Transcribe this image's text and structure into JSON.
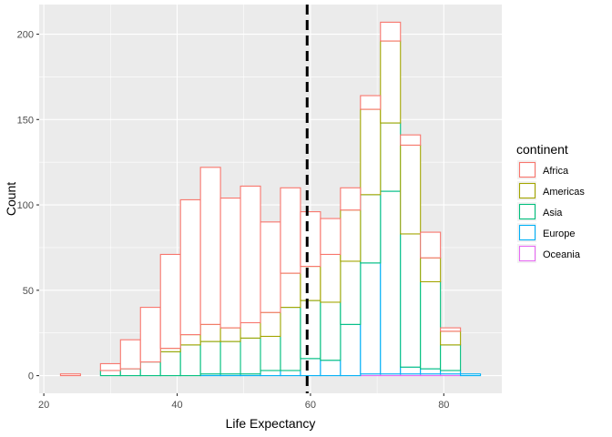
{
  "chart_data": {
    "type": "bar",
    "stacking": "stacked",
    "bins": [
      [
        22.5,
        25.5
      ],
      [
        25.5,
        28.5
      ],
      [
        28.5,
        31.5
      ],
      [
        31.5,
        34.5
      ],
      [
        34.5,
        37.5
      ],
      [
        37.5,
        40.5
      ],
      [
        40.5,
        43.5
      ],
      [
        43.5,
        46.5
      ],
      [
        46.5,
        49.5
      ],
      [
        49.5,
        52.5
      ],
      [
        52.5,
        55.5
      ],
      [
        55.5,
        58.5
      ],
      [
        58.5,
        61.5
      ],
      [
        61.5,
        64.5
      ],
      [
        64.5,
        67.5
      ],
      [
        67.5,
        70.5
      ],
      [
        70.5,
        73.5
      ],
      [
        73.5,
        76.5
      ],
      [
        76.5,
        79.5
      ],
      [
        79.5,
        82.5
      ],
      [
        82.5,
        85.5
      ]
    ],
    "series": [
      {
        "name": "Oceania",
        "color": "#E76BF3",
        "values": [
          0,
          0,
          0,
          0,
          0,
          0,
          0,
          0,
          0,
          0,
          0,
          0,
          0,
          0,
          0,
          1,
          1,
          1,
          1,
          1,
          0
        ]
      },
      {
        "name": "Europe",
        "color": "#00B0F6",
        "values": [
          0,
          0,
          0,
          0,
          0,
          0,
          0,
          1,
          1,
          1,
          3,
          3,
          10,
          9,
          30,
          65,
          107,
          4,
          3,
          2,
          1
        ]
      },
      {
        "name": "Asia",
        "color": "#00BF7D",
        "values": [
          0,
          0,
          3,
          4,
          8,
          14,
          18,
          19,
          19,
          21,
          20,
          37,
          34,
          34,
          37,
          40,
          40,
          78,
          51,
          15,
          0
        ]
      },
      {
        "name": "Americas",
        "color": "#A3A500",
        "values": [
          0,
          0,
          0,
          0,
          0,
          2,
          6,
          10,
          8,
          9,
          14,
          20,
          20,
          28,
          30,
          50,
          48,
          52,
          14,
          8,
          0
        ]
      },
      {
        "name": "Africa",
        "color": "#F8766D",
        "values": [
          1,
          0,
          4,
          17,
          32,
          55,
          79,
          92,
          76,
          80,
          53,
          50,
          32,
          21,
          13,
          8,
          11,
          6,
          15,
          2,
          0
        ]
      }
    ],
    "xlabel": "Life Expectancy",
    "ylabel": "Count",
    "xlim": [
      19.3,
      88.7
    ],
    "ylim": [
      -10.35,
      217.35
    ],
    "xticks": [
      20,
      40,
      60,
      80
    ],
    "yticks": [
      0,
      50,
      100,
      150,
      200
    ],
    "grid": true,
    "vline": {
      "x": 59.5,
      "style": "dashed",
      "color": "#000000"
    },
    "legend": {
      "title": "continent",
      "placement": "right",
      "order": [
        "Africa",
        "Americas",
        "Asia",
        "Europe",
        "Oceania"
      ]
    }
  }
}
